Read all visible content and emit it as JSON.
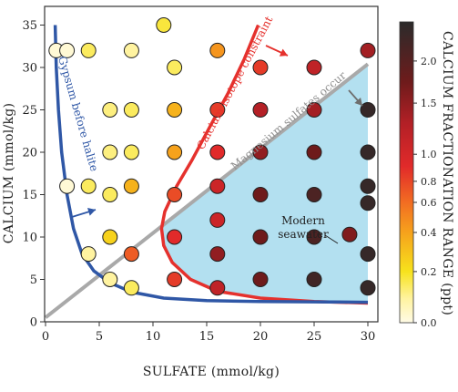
{
  "chart_data": {
    "type": "scatter",
    "xlabel": "SULFATE (mmol/kg)",
    "ylabel": "CALCIUM (mmol/kg)",
    "xlim": [
      0,
      31
    ],
    "ylim": [
      0,
      36
    ],
    "xticks": [
      "0",
      "5",
      "10",
      "15",
      "20",
      "25",
      "30"
    ],
    "yticks": [
      "0",
      "5",
      "10",
      "15",
      "20",
      "25",
      "30",
      "35"
    ],
    "colorbar": {
      "label": "CALCIUM FRACTIONATION RANGE (ppt)",
      "range": [
        0,
        2.4
      ],
      "ticks": [
        "0.0",
        "0.2",
        "0.4",
        "0.6",
        "0.8",
        "1.0",
        "1.5",
        "2.0"
      ],
      "tick_values": [
        0.0,
        0.2,
        0.4,
        0.6,
        0.8,
        1.0,
        1.5,
        2.0
      ]
    },
    "points": [
      {
        "x": 1,
        "y": 32,
        "v": 0.05
      },
      {
        "x": 2,
        "y": 32,
        "v": 0.05
      },
      {
        "x": 4,
        "y": 32,
        "v": 0.3
      },
      {
        "x": 8,
        "y": 32,
        "v": 0.2
      },
      {
        "x": 11,
        "y": 35,
        "v": 0.35
      },
      {
        "x": 16,
        "y": 32,
        "v": 0.65
      },
      {
        "x": 30,
        "y": 32,
        "v": 1.5
      },
      {
        "x": 12,
        "y": 30,
        "v": 0.3
      },
      {
        "x": 20,
        "y": 30,
        "v": 0.95
      },
      {
        "x": 25,
        "y": 30,
        "v": 1.3
      },
      {
        "x": 6,
        "y": 25,
        "v": 0.25
      },
      {
        "x": 8,
        "y": 25,
        "v": 0.3
      },
      {
        "x": 12,
        "y": 25,
        "v": 0.55
      },
      {
        "x": 16,
        "y": 25,
        "v": 0.95
      },
      {
        "x": 20,
        "y": 25,
        "v": 1.4
      },
      {
        "x": 25,
        "y": 25,
        "v": 1.5
      },
      {
        "x": 30,
        "y": 25,
        "v": 2.3
      },
      {
        "x": 6,
        "y": 20,
        "v": 0.25
      },
      {
        "x": 8,
        "y": 20,
        "v": 0.3
      },
      {
        "x": 12,
        "y": 20,
        "v": 0.6
      },
      {
        "x": 16,
        "y": 20,
        "v": 1.0
      },
      {
        "x": 20,
        "y": 20,
        "v": 1.6
      },
      {
        "x": 25,
        "y": 20,
        "v": 1.8
      },
      {
        "x": 30,
        "y": 20,
        "v": 2.3
      },
      {
        "x": 2,
        "y": 16,
        "v": 0.05
      },
      {
        "x": 4,
        "y": 16,
        "v": 0.3
      },
      {
        "x": 8,
        "y": 16,
        "v": 0.55
      },
      {
        "x": 16,
        "y": 16,
        "v": 1.2
      },
      {
        "x": 30,
        "y": 16,
        "v": 2.3
      },
      {
        "x": 6,
        "y": 15,
        "v": 0.3
      },
      {
        "x": 12,
        "y": 15,
        "v": 0.9
      },
      {
        "x": 20,
        "y": 15,
        "v": 1.8
      },
      {
        "x": 25,
        "y": 15,
        "v": 2.1
      },
      {
        "x": 30,
        "y": 14,
        "v": 2.3
      },
      {
        "x": 16,
        "y": 12,
        "v": 1.2
      },
      {
        "x": 6,
        "y": 10,
        "v": 0.45
      },
      {
        "x": 12,
        "y": 10,
        "v": 1.0
      },
      {
        "x": 20,
        "y": 10,
        "v": 1.8
      },
      {
        "x": 25,
        "y": 10,
        "v": 2.1
      },
      {
        "x": 28.3,
        "y": 10.3,
        "v": 1.7
      },
      {
        "x": 4,
        "y": 8,
        "v": 0.2
      },
      {
        "x": 8,
        "y": 8,
        "v": 0.85
      },
      {
        "x": 16,
        "y": 8,
        "v": 1.6
      },
      {
        "x": 30,
        "y": 8,
        "v": 2.3
      },
      {
        "x": 6,
        "y": 5,
        "v": 0.2
      },
      {
        "x": 12,
        "y": 5,
        "v": 0.95
      },
      {
        "x": 20,
        "y": 5,
        "v": 1.8
      },
      {
        "x": 25,
        "y": 5,
        "v": 2.2
      },
      {
        "x": 8,
        "y": 4,
        "v": 0.3
      },
      {
        "x": 16,
        "y": 4,
        "v": 1.3
      },
      {
        "x": 30,
        "y": 4,
        "v": 2.3
      }
    ],
    "annotations": {
      "gypsum": "Gypsum before halite",
      "isotope": "Calcium isotope constraint",
      "magnesium": "Magnesium sulfates occur",
      "seawater_line1": "Modern",
      "seawater_line2": "seawater"
    },
    "colors": {
      "gypsum_curve": "#2f57a6",
      "isotope_curve": "#e5312d",
      "magnesium_line": "#a9a9a9",
      "shaded_region": "#b3e0f0"
    }
  }
}
